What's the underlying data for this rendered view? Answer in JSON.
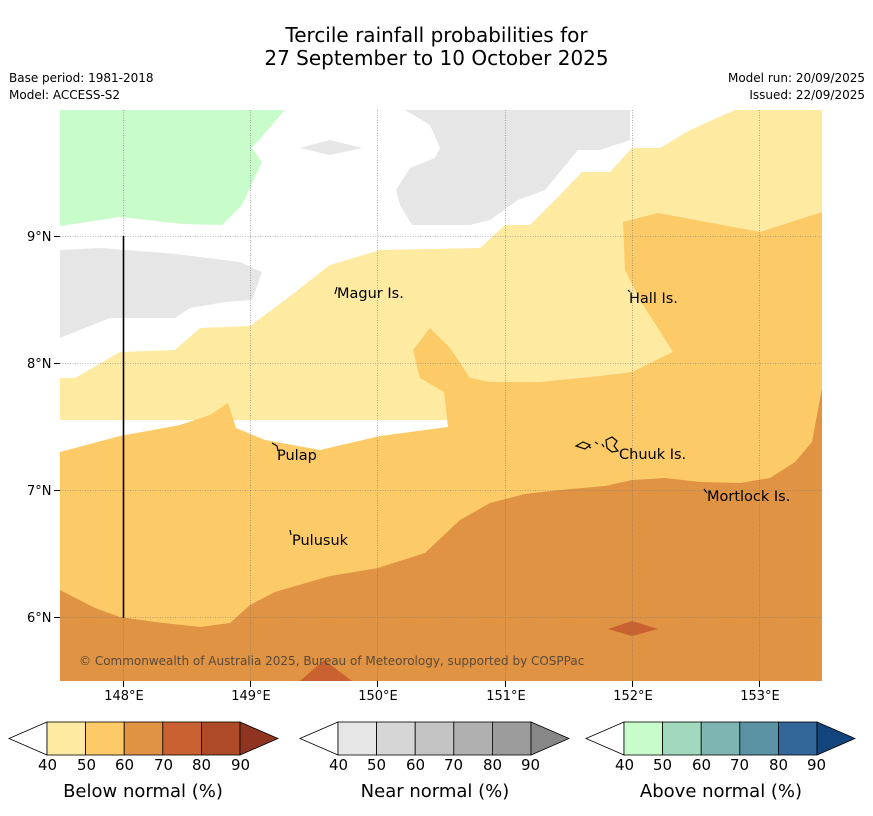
{
  "title": {
    "line1": "Tercile rainfall probabilities for",
    "line2": "27 September to 10 October 2025"
  },
  "meta": {
    "base_period": "Base period: 1981-2018",
    "model": "Model: ACCESS-S2",
    "model_run": "Model run: 20/09/2025",
    "issued": "Issued: 22/09/2025"
  },
  "map": {
    "lon_labels": [
      "148°E",
      "149°E",
      "150°E",
      "151°E",
      "152°E",
      "153°E"
    ],
    "lat_labels": [
      "9°N",
      "8°N",
      "7°N",
      "6°N"
    ],
    "islands": {
      "magur": "Magur Is.",
      "hall": "Hall Is.",
      "pulap": "Pulap",
      "chuuk": "Chuuk Is.",
      "mortlock": "Mortlock Is.",
      "pulusuk": "Pulusuk"
    },
    "copyright": "© Commonwealth of Australia 2025, Bureau of Meteorology, supported by COSPPac"
  },
  "colors": {
    "below": [
      "#ffffff",
      "#feeaa0",
      "#fdca68",
      "#df9343",
      "#c96130",
      "#af4a28",
      "#8f3420"
    ],
    "near": [
      "#ffffff",
      "#e6e6e6",
      "#d6d6d6",
      "#c4c4c4",
      "#b0b0b0",
      "#9c9c9c",
      "#878787"
    ],
    "above": [
      "#ffffff",
      "#c8fdcb",
      "#a2d9be",
      "#7eb5b2",
      "#5b92a4",
      "#336699",
      "#13457d"
    ]
  },
  "colorbars": {
    "below": {
      "ticks": [
        "40",
        "50",
        "60",
        "70",
        "80",
        "90"
      ],
      "label": "Below normal (%)"
    },
    "near": {
      "ticks": [
        "40",
        "50",
        "60",
        "70",
        "80",
        "90"
      ],
      "label": "Near normal (%)"
    },
    "above": {
      "ticks": [
        "40",
        "50",
        "60",
        "70",
        "80",
        "90"
      ],
      "label": "Above normal (%)"
    }
  }
}
